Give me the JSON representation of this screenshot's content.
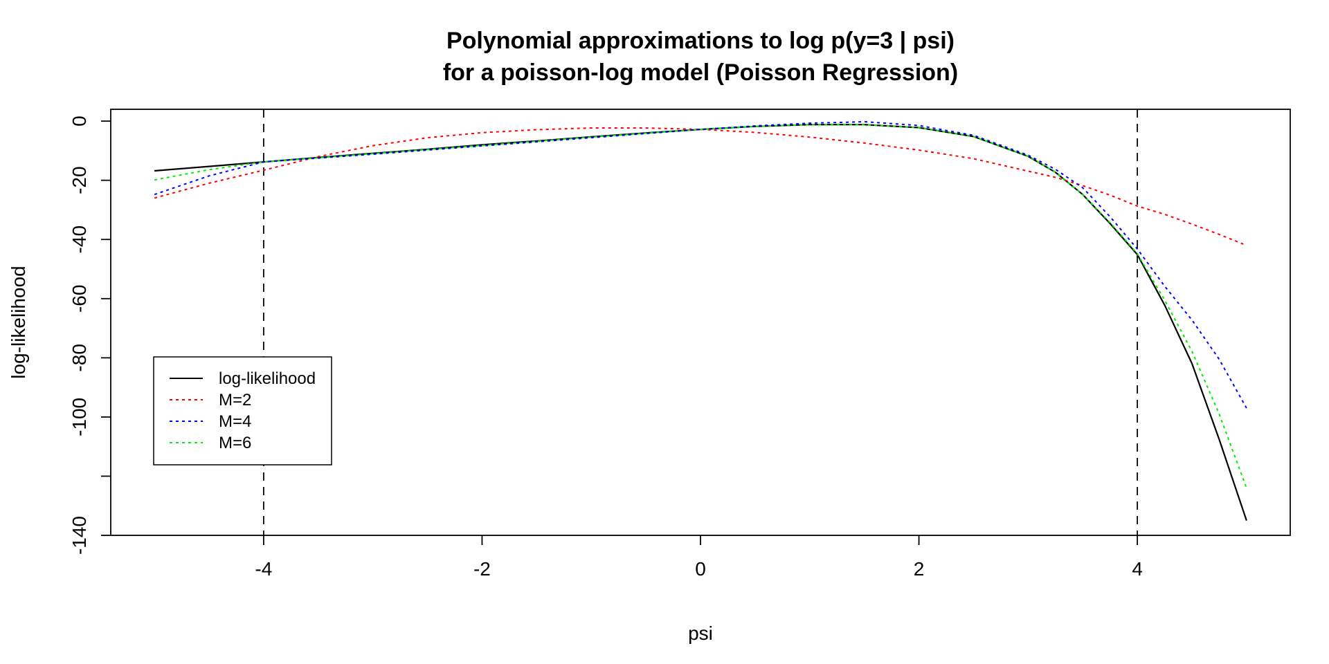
{
  "chart_data": {
    "type": "line",
    "title": [
      "Polynomial approximations to log p(y=3 | psi)",
      "for a poisson-log model (Poisson Regression)"
    ],
    "xlabel": "psi",
    "ylabel": "log-likelihood",
    "xlim": [
      -5.4,
      5.4
    ],
    "ylim": [
      -140,
      4
    ],
    "x_ticks": [
      -4,
      -2,
      0,
      2,
      4
    ],
    "y_ticks": [
      0,
      -20,
      -40,
      -60,
      -80,
      -100,
      -120,
      -140
    ],
    "y_tick_labels": [
      "0",
      "-20",
      "-40",
      "-60",
      "-80",
      "-100",
      "",
      "-140"
    ],
    "vlines": [
      -4,
      4
    ],
    "legend_position": "bottom-left",
    "colors": {
      "loglik": "#000000",
      "m2": "#ff0000",
      "m4": "#0000ff",
      "m6": "#00ee00",
      "vline": "#000000"
    },
    "x": [
      -5,
      -4.5,
      -4,
      -3.5,
      -3,
      -2.5,
      -2,
      -1.5,
      -1,
      -0.5,
      0,
      0.5,
      1,
      1.5,
      2,
      2.5,
      3,
      3.25,
      3.5,
      3.75,
      4,
      4.25,
      4.5,
      4.75,
      5
    ],
    "series": [
      {
        "key": "loglik",
        "name": "log-likelihood",
        "dash": "",
        "values": [
          -16.8,
          -15.3,
          -13.8,
          -12.3,
          -10.9,
          -9.5,
          -8.0,
          -6.7,
          -5.3,
          -4.0,
          -2.8,
          -1.8,
          -1.2,
          -1.2,
          -2.2,
          -5.2,
          -11.9,
          -17.3,
          -24.8,
          -34.6,
          -45.1,
          -62.2,
          -81.9,
          -107.6,
          -135.0
        ]
      },
      {
        "key": "m2",
        "name": "M=2",
        "dash": "4,5",
        "values": [
          -26.0,
          -21.0,
          -16.6,
          -12.0,
          -8.3,
          -5.6,
          -3.9,
          -2.9,
          -2.3,
          -2.3,
          -2.8,
          -3.8,
          -5.4,
          -7.4,
          -9.8,
          -12.7,
          -16.9,
          -19.0,
          -21.8,
          -25.0,
          -28.7,
          -31.5,
          -34.8,
          -38.3,
          -42.0
        ]
      },
      {
        "key": "m4",
        "name": "M=4",
        "dash": "4,5",
        "values": [
          -24.8,
          -18.5,
          -13.8,
          -12.5,
          -11.2,
          -9.8,
          -8.4,
          -7.0,
          -5.6,
          -4.2,
          -2.8,
          -1.6,
          -0.7,
          -0.2,
          -1.5,
          -4.8,
          -11.5,
          -16.3,
          -22.5,
          -32.3,
          -43.2,
          -55.8,
          -67.2,
          -80.5,
          -97.0
        ]
      },
      {
        "key": "m6",
        "name": "M=6",
        "dash": "4,5",
        "values": [
          -19.9,
          -16.4,
          -13.8,
          -12.4,
          -11.0,
          -9.6,
          -8.2,
          -6.8,
          -5.4,
          -4.1,
          -2.8,
          -1.8,
          -1.2,
          -1.2,
          -2.2,
          -5.2,
          -11.9,
          -17.3,
          -24.8,
          -34.3,
          -44.8,
          -60.5,
          -77.8,
          -99.0,
          -124.0
        ]
      }
    ]
  }
}
